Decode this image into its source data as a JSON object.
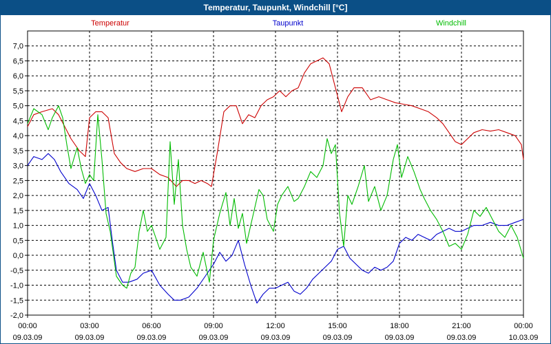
{
  "chart_data": {
    "type": "line",
    "title": "Temperatur, Taupunkt, Windchill [°C]",
    "xlabel": "",
    "ylabel": "",
    "ylim": [
      -2.0,
      7.5
    ],
    "xlim": [
      0,
      24
    ],
    "yticks": [
      "-2,0",
      "-1,5",
      "-1,0",
      "-0,5",
      "0,0",
      "0,5",
      "1,0",
      "1,5",
      "2,0",
      "2,5",
      "3,0",
      "3,5",
      "4,0",
      "4,5",
      "5,0",
      "5,5",
      "6,0",
      "6,5",
      "7,0"
    ],
    "ytick_values": [
      -2.0,
      -1.5,
      -1.0,
      -0.5,
      0.0,
      0.5,
      1.0,
      1.5,
      2.0,
      2.5,
      3.0,
      3.5,
      4.0,
      4.5,
      5.0,
      5.5,
      6.0,
      6.5,
      7.0
    ],
    "xticks": [
      {
        "time": "00:00",
        "date": "09.03.09"
      },
      {
        "time": "03:00",
        "date": "09.03.09"
      },
      {
        "time": "06:00",
        "date": "09.03.09"
      },
      {
        "time": "09:00",
        "date": "09.03.09"
      },
      {
        "time": "12:00",
        "date": "09.03.09"
      },
      {
        "time": "15:00",
        "date": "09.03.09"
      },
      {
        "time": "18:00",
        "date": "09.03.09"
      },
      {
        "time": "21:00",
        "date": "09.03.09"
      },
      {
        "time": "00:00",
        "date": "10.03.09"
      }
    ],
    "xtick_hours": [
      0,
      3,
      6,
      9,
      12,
      15,
      18,
      21,
      24
    ],
    "grid": true,
    "series": [
      {
        "name": "Temperatur",
        "color": "#cc0000",
        "points": [
          [
            0,
            4.3
          ],
          [
            0.3,
            4.7
          ],
          [
            0.7,
            4.8
          ],
          [
            1.2,
            4.9
          ],
          [
            1.5,
            4.7
          ],
          [
            1.8,
            4.3
          ],
          [
            2.1,
            3.9
          ],
          [
            2.5,
            3.5
          ],
          [
            2.8,
            3.3
          ],
          [
            3.0,
            4.6
          ],
          [
            3.3,
            4.8
          ],
          [
            3.6,
            4.8
          ],
          [
            3.9,
            4.6
          ],
          [
            4.2,
            3.4
          ],
          [
            4.5,
            3.1
          ],
          [
            4.8,
            2.9
          ],
          [
            5.2,
            2.8
          ],
          [
            5.6,
            2.9
          ],
          [
            6.0,
            2.9
          ],
          [
            6.4,
            2.7
          ],
          [
            6.8,
            2.6
          ],
          [
            7.2,
            2.3
          ],
          [
            7.5,
            2.5
          ],
          [
            7.8,
            2.5
          ],
          [
            8.1,
            2.4
          ],
          [
            8.4,
            2.5
          ],
          [
            8.7,
            2.4
          ],
          [
            8.9,
            2.3
          ],
          [
            9.2,
            3.5
          ],
          [
            9.5,
            4.8
          ],
          [
            9.8,
            5.0
          ],
          [
            10.1,
            5.0
          ],
          [
            10.4,
            4.4
          ],
          [
            10.7,
            4.7
          ],
          [
            11.0,
            4.6
          ],
          [
            11.3,
            5.0
          ],
          [
            11.6,
            5.2
          ],
          [
            11.9,
            5.3
          ],
          [
            12.2,
            5.5
          ],
          [
            12.5,
            5.3
          ],
          [
            12.8,
            5.5
          ],
          [
            13.1,
            5.6
          ],
          [
            13.4,
            6.1
          ],
          [
            13.7,
            6.4
          ],
          [
            14.0,
            6.5
          ],
          [
            14.3,
            6.6
          ],
          [
            14.6,
            6.4
          ],
          [
            14.9,
            5.6
          ],
          [
            15.2,
            4.8
          ],
          [
            15.5,
            5.3
          ],
          [
            15.8,
            5.6
          ],
          [
            16.2,
            5.6
          ],
          [
            16.6,
            5.2
          ],
          [
            17.0,
            5.3
          ],
          [
            17.4,
            5.2
          ],
          [
            17.8,
            5.1
          ],
          [
            18.2,
            5.05
          ],
          [
            18.6,
            5.0
          ],
          [
            19.0,
            4.9
          ],
          [
            19.4,
            4.8
          ],
          [
            19.8,
            4.6
          ],
          [
            20.1,
            4.4
          ],
          [
            20.4,
            4.1
          ],
          [
            20.7,
            3.8
          ],
          [
            21.0,
            3.7
          ],
          [
            21.3,
            3.9
          ],
          [
            21.6,
            4.1
          ],
          [
            22.0,
            4.2
          ],
          [
            22.4,
            4.15
          ],
          [
            22.8,
            4.2
          ],
          [
            23.2,
            4.1
          ],
          [
            23.6,
            4.0
          ],
          [
            23.9,
            3.7
          ],
          [
            24.0,
            3.2
          ]
        ]
      },
      {
        "name": "Taupunkt",
        "color": "#0000cc",
        "points": [
          [
            0,
            3.0
          ],
          [
            0.3,
            3.3
          ],
          [
            0.7,
            3.2
          ],
          [
            1.0,
            3.4
          ],
          [
            1.3,
            3.2
          ],
          [
            1.6,
            2.8
          ],
          [
            2.0,
            2.4
          ],
          [
            2.4,
            2.2
          ],
          [
            2.7,
            1.9
          ],
          [
            3.0,
            2.4
          ],
          [
            3.3,
            2.0
          ],
          [
            3.6,
            1.5
          ],
          [
            3.9,
            1.6
          ],
          [
            4.1,
            0.5
          ],
          [
            4.3,
            -0.5
          ],
          [
            4.6,
            -0.9
          ],
          [
            4.9,
            -0.9
          ],
          [
            5.3,
            -0.8
          ],
          [
            5.6,
            -0.6
          ],
          [
            6.0,
            -0.5
          ],
          [
            6.4,
            -1.0
          ],
          [
            6.8,
            -1.3
          ],
          [
            7.1,
            -1.5
          ],
          [
            7.4,
            -1.5
          ],
          [
            7.8,
            -1.4
          ],
          [
            8.2,
            -1.1
          ],
          [
            8.6,
            -0.7
          ],
          [
            9.0,
            -0.3
          ],
          [
            9.3,
            0.1
          ],
          [
            9.6,
            -0.2
          ],
          [
            9.9,
            0.0
          ],
          [
            10.2,
            0.5
          ],
          [
            10.5,
            -0.3
          ],
          [
            10.8,
            -1.0
          ],
          [
            11.1,
            -1.6
          ],
          [
            11.4,
            -1.3
          ],
          [
            11.7,
            -1.1
          ],
          [
            12.0,
            -1.1
          ],
          [
            12.3,
            -1.0
          ],
          [
            12.6,
            -0.9
          ],
          [
            12.9,
            -1.2
          ],
          [
            13.2,
            -1.3
          ],
          [
            13.5,
            -1.1
          ],
          [
            13.8,
            -0.8
          ],
          [
            14.1,
            -0.6
          ],
          [
            14.4,
            -0.4
          ],
          [
            14.7,
            -0.2
          ],
          [
            15.0,
            0.2
          ],
          [
            15.3,
            0.3
          ],
          [
            15.6,
            -0.1
          ],
          [
            15.9,
            -0.3
          ],
          [
            16.2,
            -0.5
          ],
          [
            16.5,
            -0.6
          ],
          [
            16.8,
            -0.4
          ],
          [
            17.1,
            -0.5
          ],
          [
            17.4,
            -0.4
          ],
          [
            17.7,
            -0.2
          ],
          [
            18.0,
            0.4
          ],
          [
            18.3,
            0.6
          ],
          [
            18.6,
            0.5
          ],
          [
            18.9,
            0.7
          ],
          [
            19.2,
            0.6
          ],
          [
            19.5,
            0.5
          ],
          [
            19.8,
            0.7
          ],
          [
            20.1,
            0.8
          ],
          [
            20.4,
            0.9
          ],
          [
            20.7,
            0.8
          ],
          [
            21.0,
            0.8
          ],
          [
            21.3,
            0.9
          ],
          [
            21.6,
            1.0
          ],
          [
            22.0,
            1.0
          ],
          [
            22.4,
            1.1
          ],
          [
            22.8,
            1.0
          ],
          [
            23.2,
            1.0
          ],
          [
            23.6,
            1.1
          ],
          [
            24.0,
            1.2
          ]
        ]
      },
      {
        "name": "Windchill",
        "color": "#00bb00",
        "points": [
          [
            0,
            4.4
          ],
          [
            0.3,
            4.9
          ],
          [
            0.7,
            4.7
          ],
          [
            1.0,
            4.2
          ],
          [
            1.2,
            4.6
          ],
          [
            1.5,
            5.0
          ],
          [
            1.7,
            4.6
          ],
          [
            1.9,
            3.7
          ],
          [
            2.1,
            2.9
          ],
          [
            2.4,
            3.6
          ],
          [
            2.6,
            2.9
          ],
          [
            2.8,
            2.4
          ],
          [
            3.0,
            2.7
          ],
          [
            3.2,
            2.5
          ],
          [
            3.4,
            4.7
          ],
          [
            3.6,
            3.2
          ],
          [
            3.8,
            1.4
          ],
          [
            4.0,
            0.8
          ],
          [
            4.3,
            -0.7
          ],
          [
            4.6,
            -1.0
          ],
          [
            4.8,
            -1.1
          ],
          [
            5.0,
            -0.6
          ],
          [
            5.2,
            -0.4
          ],
          [
            5.4,
            0.8
          ],
          [
            5.6,
            1.5
          ],
          [
            5.8,
            0.8
          ],
          [
            6.0,
            1.0
          ],
          [
            6.2,
            0.6
          ],
          [
            6.4,
            0.2
          ],
          [
            6.7,
            0.6
          ],
          [
            6.9,
            3.8
          ],
          [
            7.1,
            1.7
          ],
          [
            7.3,
            3.2
          ],
          [
            7.5,
            1.0
          ],
          [
            7.7,
            0.2
          ],
          [
            7.9,
            -0.4
          ],
          [
            8.2,
            -0.7
          ],
          [
            8.5,
            0.1
          ],
          [
            8.8,
            -0.9
          ],
          [
            9.0,
            0.5
          ],
          [
            9.3,
            1.4
          ],
          [
            9.6,
            2.1
          ],
          [
            9.8,
            1.0
          ],
          [
            10.0,
            1.9
          ],
          [
            10.2,
            0.9
          ],
          [
            10.4,
            1.4
          ],
          [
            10.6,
            0.4
          ],
          [
            10.9,
            1.3
          ],
          [
            11.2,
            2.2
          ],
          [
            11.4,
            2.0
          ],
          [
            11.6,
            1.2
          ],
          [
            11.9,
            0.8
          ],
          [
            12.1,
            1.7
          ],
          [
            12.3,
            2.0
          ],
          [
            12.6,
            2.3
          ],
          [
            12.9,
            1.8
          ],
          [
            13.1,
            1.9
          ],
          [
            13.4,
            2.3
          ],
          [
            13.7,
            2.8
          ],
          [
            14.0,
            2.6
          ],
          [
            14.3,
            3.0
          ],
          [
            14.5,
            3.9
          ],
          [
            14.7,
            3.4
          ],
          [
            14.9,
            3.7
          ],
          [
            15.1,
            1.4
          ],
          [
            15.3,
            0.3
          ],
          [
            15.5,
            2.0
          ],
          [
            15.7,
            1.7
          ],
          [
            16.0,
            2.3
          ],
          [
            16.3,
            3.0
          ],
          [
            16.5,
            1.8
          ],
          [
            16.8,
            2.3
          ],
          [
            17.1,
            1.5
          ],
          [
            17.4,
            2.0
          ],
          [
            17.7,
            3.2
          ],
          [
            17.9,
            3.7
          ],
          [
            18.1,
            2.6
          ],
          [
            18.4,
            3.3
          ],
          [
            18.7,
            2.8
          ],
          [
            19.0,
            2.2
          ],
          [
            19.2,
            1.9
          ],
          [
            19.5,
            1.5
          ],
          [
            19.8,
            1.2
          ],
          [
            20.1,
            0.8
          ],
          [
            20.4,
            0.3
          ],
          [
            20.7,
            0.4
          ],
          [
            21.0,
            0.2
          ],
          [
            21.3,
            0.7
          ],
          [
            21.6,
            1.5
          ],
          [
            21.9,
            1.3
          ],
          [
            22.2,
            1.6
          ],
          [
            22.5,
            1.2
          ],
          [
            22.8,
            0.8
          ],
          [
            23.1,
            0.6
          ],
          [
            23.4,
            1.0
          ],
          [
            23.7,
            0.6
          ],
          [
            24.0,
            -0.1
          ]
        ]
      }
    ]
  }
}
